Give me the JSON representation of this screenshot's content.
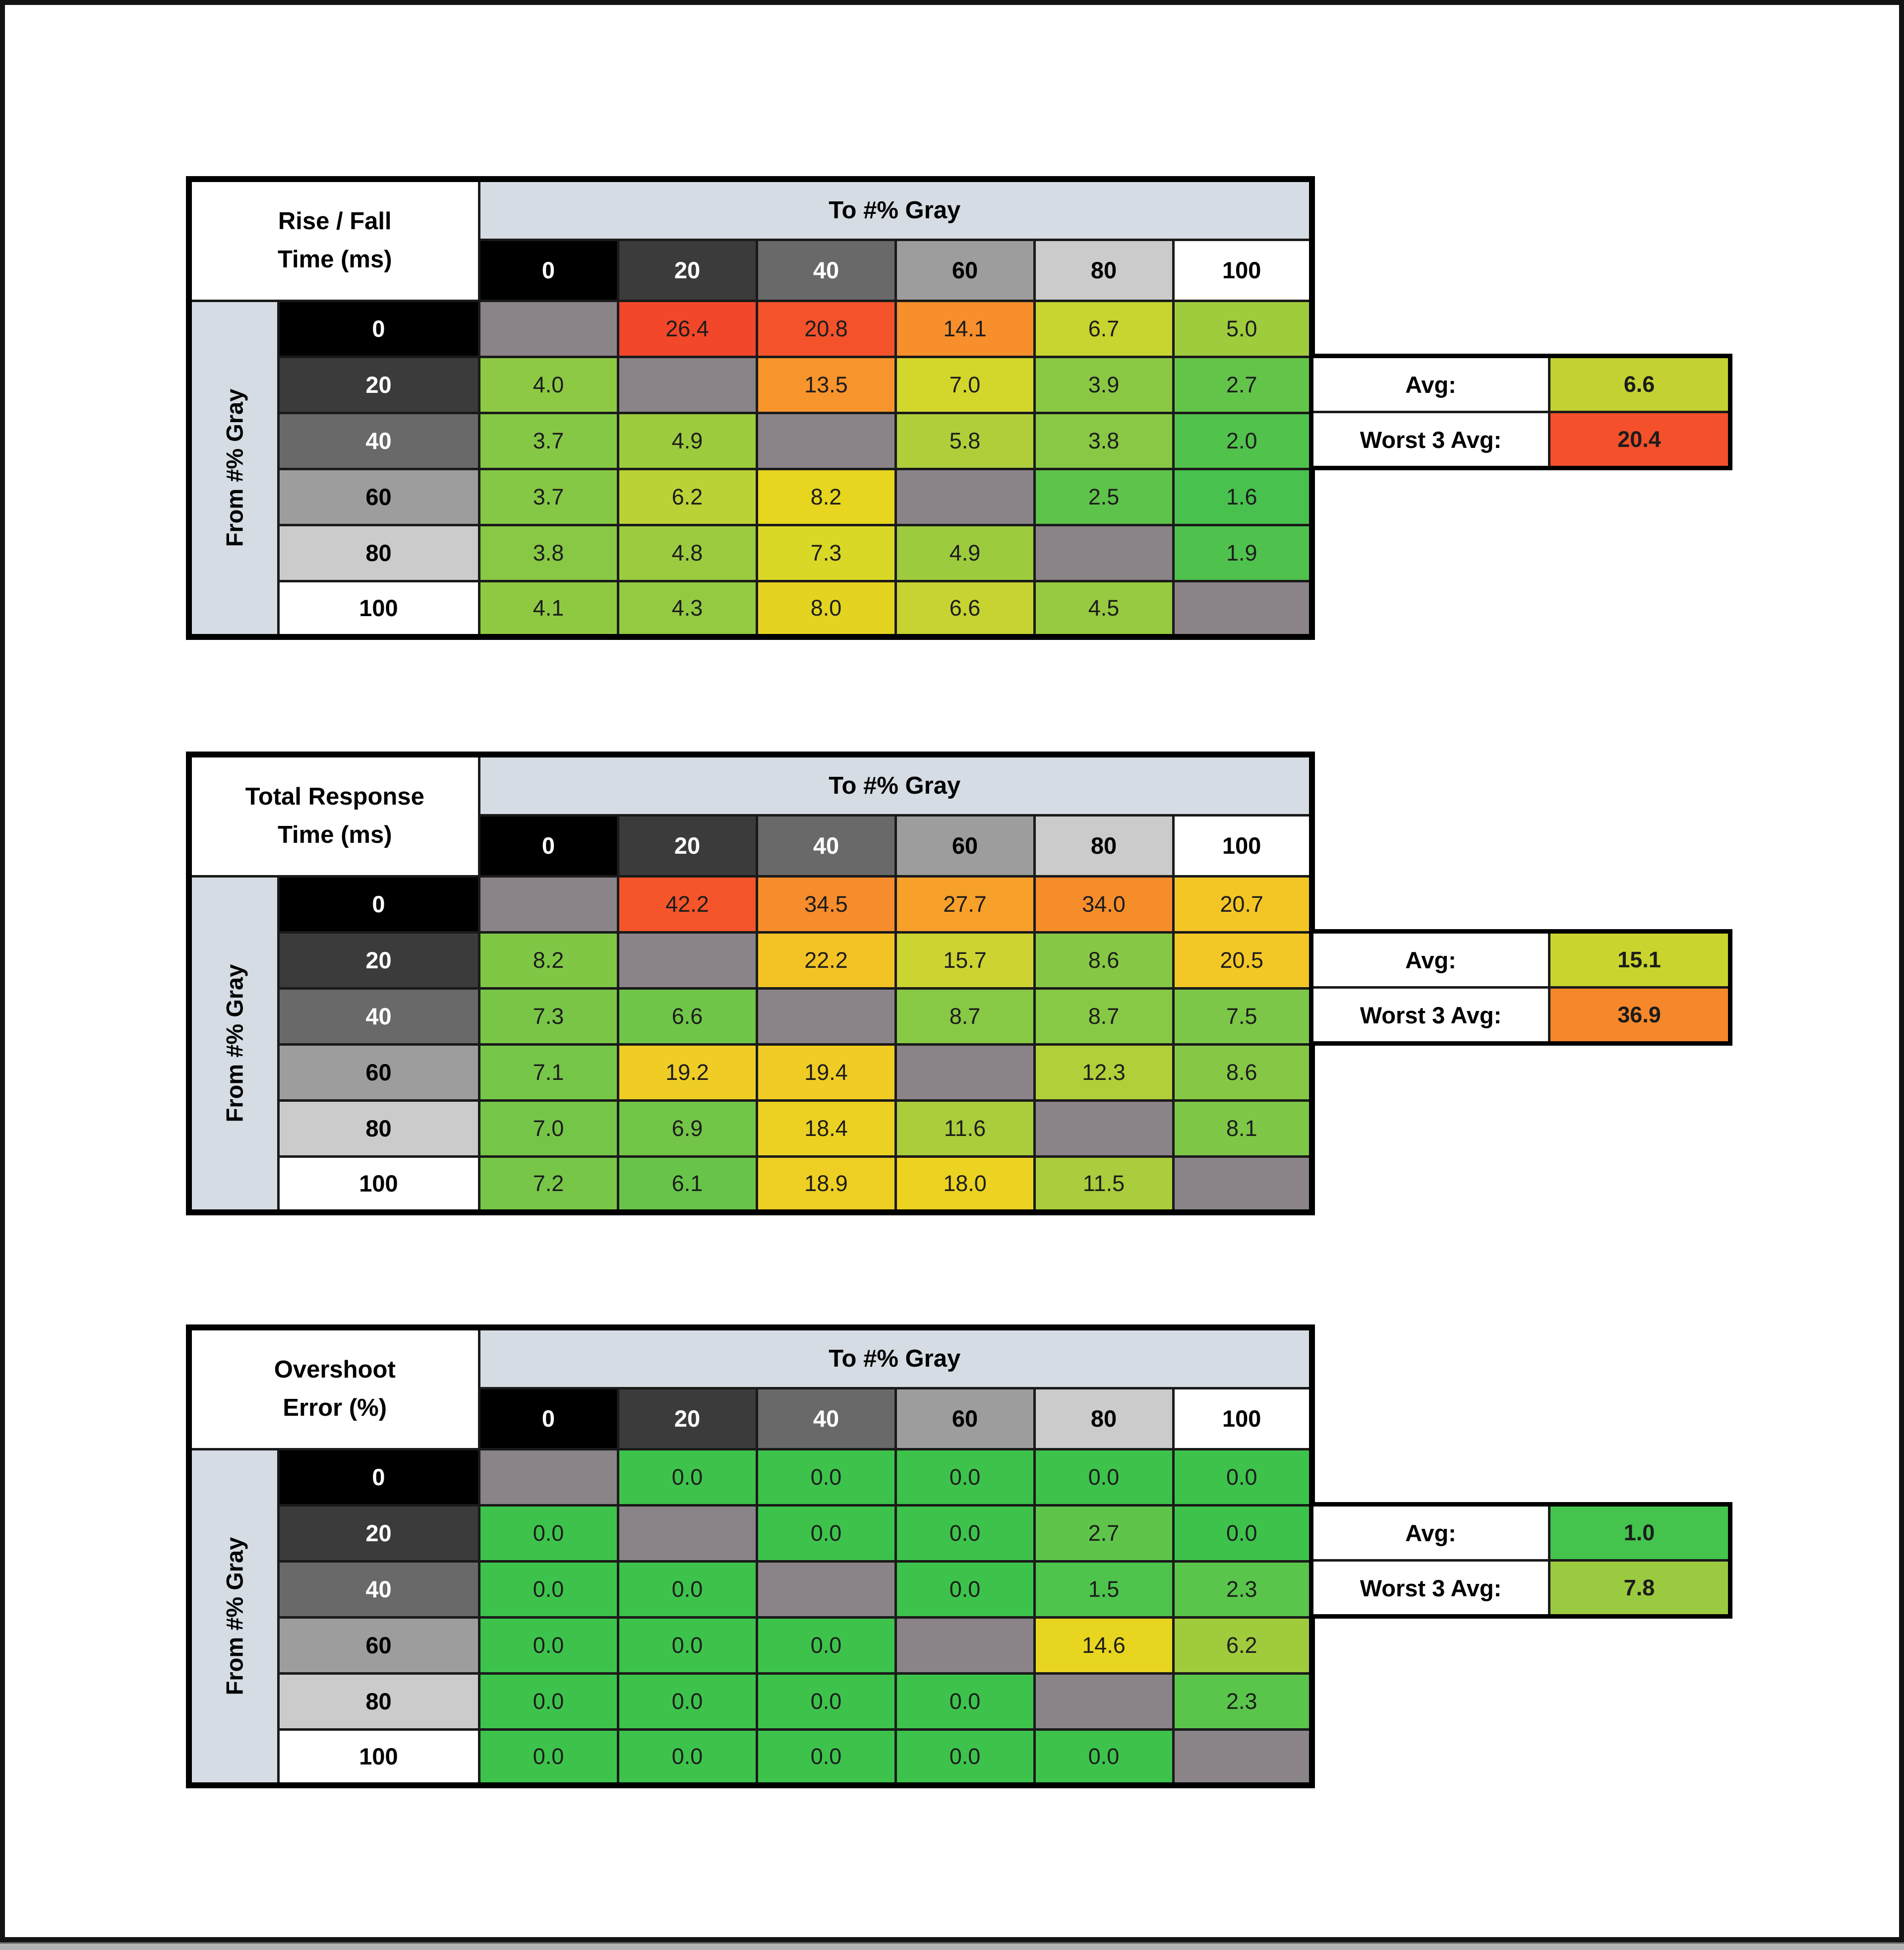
{
  "shared": {
    "to_header": "To #% Gray",
    "from_header": "From #% Gray",
    "cols": [
      "0",
      "20",
      "40",
      "60",
      "80",
      "100"
    ],
    "rows": [
      "0",
      "20",
      "40",
      "60",
      "80",
      "100"
    ],
    "header_shades": [
      {
        "bg": "#000000",
        "fg": "#ffffff"
      },
      {
        "bg": "#3b3b3b",
        "fg": "#ffffff"
      },
      {
        "bg": "#696969",
        "fg": "#ffffff"
      },
      {
        "bg": "#9d9d9d",
        "fg": "#000000"
      },
      {
        "bg": "#cbcbcb",
        "fg": "#000000"
      },
      {
        "bg": "#ffffff",
        "fg": "#000000"
      }
    ],
    "diagonal_color": "#8a8489",
    "banner_bg": "#d6dce3",
    "avg_label": "Avg:",
    "worst_label": "Worst 3 Avg:"
  },
  "chart_data": [
    {
      "type": "heatmap",
      "title": "Rise / Fall Time (ms)",
      "xlabel": "To #% Gray",
      "ylabel": "From #% Gray",
      "x": [
        0,
        20,
        40,
        60,
        80,
        100
      ],
      "y": [
        0,
        20,
        40,
        60,
        80,
        100
      ],
      "values": [
        [
          null,
          26.4,
          20.8,
          14.1,
          6.7,
          5.0
        ],
        [
          4.0,
          null,
          13.5,
          7.0,
          3.9,
          2.7
        ],
        [
          3.7,
          4.9,
          null,
          5.8,
          3.8,
          2.0
        ],
        [
          3.7,
          6.2,
          8.2,
          null,
          2.5,
          1.6
        ],
        [
          3.8,
          4.8,
          7.3,
          4.9,
          null,
          1.9
        ],
        [
          4.1,
          4.3,
          8.0,
          6.6,
          4.5,
          null
        ]
      ],
      "avg": 6.6,
      "worst_3_avg": 20.4
    },
    {
      "type": "heatmap",
      "title": "Total Response Time (ms)",
      "xlabel": "To #% Gray",
      "ylabel": "From #% Gray",
      "x": [
        0,
        20,
        40,
        60,
        80,
        100
      ],
      "y": [
        0,
        20,
        40,
        60,
        80,
        100
      ],
      "values": [
        [
          null,
          42.2,
          34.5,
          27.7,
          34.0,
          20.7
        ],
        [
          8.2,
          null,
          22.2,
          15.7,
          8.6,
          20.5
        ],
        [
          7.3,
          6.6,
          null,
          8.7,
          8.7,
          7.5
        ],
        [
          7.1,
          19.2,
          19.4,
          null,
          12.3,
          8.6
        ],
        [
          7.0,
          6.9,
          18.4,
          11.6,
          null,
          8.1
        ],
        [
          7.2,
          6.1,
          18.9,
          18.0,
          11.5,
          null
        ]
      ],
      "avg": 15.1,
      "worst_3_avg": 36.9
    },
    {
      "type": "heatmap",
      "title": "Overshoot Error (%)",
      "xlabel": "To #% Gray",
      "ylabel": "From #% Gray",
      "x": [
        0,
        20,
        40,
        60,
        80,
        100
      ],
      "y": [
        0,
        20,
        40,
        60,
        80,
        100
      ],
      "values": [
        [
          null,
          0.0,
          0.0,
          0.0,
          0.0,
          0.0
        ],
        [
          0.0,
          null,
          0.0,
          0.0,
          2.7,
          0.0
        ],
        [
          0.0,
          0.0,
          null,
          0.0,
          1.5,
          2.3
        ],
        [
          0.0,
          0.0,
          0.0,
          null,
          14.6,
          6.2
        ],
        [
          0.0,
          0.0,
          0.0,
          0.0,
          null,
          2.3
        ],
        [
          0.0,
          0.0,
          0.0,
          0.0,
          0.0,
          null
        ]
      ],
      "avg": 1.0,
      "worst_3_avg": 7.8
    }
  ],
  "tables": [
    {
      "name": "rise-fall-table",
      "title_lines": [
        "Rise / Fall",
        "Time (ms)"
      ],
      "cells": [
        [
          null,
          {
            "v": "26.4",
            "c": "#F2472A"
          },
          {
            "v": "20.8",
            "c": "#F3522B"
          },
          {
            "v": "14.1",
            "c": "#F68F2C"
          },
          {
            "v": "6.7",
            "c": "#C8D42F"
          },
          {
            "v": "5.0",
            "c": "#9FCC3D"
          }
        ],
        [
          {
            "v": "4.0",
            "c": "#8DC943"
          },
          null,
          {
            "v": "13.5",
            "c": "#F7942C"
          },
          {
            "v": "7.0",
            "c": "#D4D72B"
          },
          {
            "v": "3.9",
            "c": "#8AC844"
          },
          {
            "v": "2.7",
            "c": "#63C44A"
          }
        ],
        [
          {
            "v": "3.7",
            "c": "#85C845"
          },
          {
            "v": "4.9",
            "c": "#9DCB3E"
          },
          null,
          {
            "v": "5.8",
            "c": "#AFCE3A"
          },
          {
            "v": "3.8",
            "c": "#88C844"
          },
          {
            "v": "2.0",
            "c": "#51C24C"
          }
        ],
        [
          {
            "v": "3.7",
            "c": "#85C845"
          },
          {
            "v": "6.2",
            "c": "#BCD135"
          },
          {
            "v": "8.2",
            "c": "#E7D51F"
          },
          null,
          {
            "v": "2.5",
            "c": "#5EC34B"
          },
          {
            "v": "1.6",
            "c": "#48C14E"
          }
        ],
        [
          {
            "v": "3.8",
            "c": "#88C844"
          },
          {
            "v": "4.8",
            "c": "#9BCB3F"
          },
          {
            "v": "7.3",
            "c": "#DAD827"
          },
          {
            "v": "4.9",
            "c": "#9DCB3E"
          },
          null,
          {
            "v": "1.9",
            "c": "#4FC24D"
          }
        ],
        [
          {
            "v": "4.1",
            "c": "#8FC942"
          },
          {
            "v": "4.3",
            "c": "#93CA41"
          },
          {
            "v": "8.0",
            "c": "#E4D421"
          },
          {
            "v": "6.6",
            "c": "#C6D330"
          },
          {
            "v": "4.5",
            "c": "#97CA40"
          },
          null
        ]
      ],
      "avg": {
        "v": "6.6",
        "c": "#C3D232"
      },
      "worst": {
        "v": "20.4",
        "c": "#F3502B"
      }
    },
    {
      "name": "total-response-table",
      "title_lines": [
        "Total Response",
        "Time (ms)"
      ],
      "cells": [
        [
          null,
          {
            "v": "42.2",
            "c": "#F4552A"
          },
          {
            "v": "34.5",
            "c": "#F68C2B"
          },
          {
            "v": "27.7",
            "c": "#F7A02A"
          },
          {
            "v": "34.0",
            "c": "#F68D2B"
          },
          {
            "v": "20.7",
            "c": "#F3C626"
          }
        ],
        [
          {
            "v": "8.2",
            "c": "#80C746"
          },
          null,
          {
            "v": "22.2",
            "c": "#F3C326"
          },
          {
            "v": "15.7",
            "c": "#CCD431"
          },
          {
            "v": "8.6",
            "c": "#86C845"
          },
          {
            "v": "20.5",
            "c": "#F3C726"
          }
        ],
        [
          {
            "v": "7.3",
            "c": "#79C647"
          },
          {
            "v": "6.6",
            "c": "#6FC548"
          },
          null,
          {
            "v": "8.7",
            "c": "#87C845"
          },
          {
            "v": "8.7",
            "c": "#87C845"
          },
          {
            "v": "7.5",
            "c": "#7CC747"
          }
        ],
        [
          {
            "v": "7.1",
            "c": "#76C647"
          },
          {
            "v": "19.2",
            "c": "#EFCD24"
          },
          {
            "v": "19.4",
            "c": "#F0CC24"
          },
          null,
          {
            "v": "12.3",
            "c": "#B1CF39"
          },
          {
            "v": "8.6",
            "c": "#86C845"
          }
        ],
        [
          {
            "v": "7.0",
            "c": "#75C647"
          },
          {
            "v": "6.9",
            "c": "#73C548"
          },
          {
            "v": "18.4",
            "c": "#EDD122"
          },
          {
            "v": "11.6",
            "c": "#AACD3B"
          },
          null,
          {
            "v": "8.1",
            "c": "#7FC746"
          }
        ],
        [
          {
            "v": "7.2",
            "c": "#77C647"
          },
          {
            "v": "6.1",
            "c": "#68C449"
          },
          {
            "v": "18.9",
            "c": "#EECF23"
          },
          {
            "v": "18.0",
            "c": "#ECD221"
          },
          {
            "v": "11.5",
            "c": "#A9CD3C"
          },
          null
        ]
      ],
      "avg": {
        "v": "15.1",
        "c": "#C9D42E"
      },
      "worst": {
        "v": "36.9",
        "c": "#F6882B"
      }
    },
    {
      "name": "overshoot-table",
      "title_lines": [
        "Overshoot",
        "Error (%)"
      ],
      "cells": [
        [
          null,
          {
            "v": "0.0",
            "c": "#3DC34C"
          },
          {
            "v": "0.0",
            "c": "#3DC34C"
          },
          {
            "v": "0.0",
            "c": "#3DC34C"
          },
          {
            "v": "0.0",
            "c": "#3DC34C"
          },
          {
            "v": "0.0",
            "c": "#3DC34C"
          }
        ],
        [
          {
            "v": "0.0",
            "c": "#3DC34C"
          },
          null,
          {
            "v": "0.0",
            "c": "#3DC34C"
          },
          {
            "v": "0.0",
            "c": "#3DC34C"
          },
          {
            "v": "2.7",
            "c": "#5FC54A"
          },
          {
            "v": "0.0",
            "c": "#3DC34C"
          }
        ],
        [
          {
            "v": "0.0",
            "c": "#3DC34C"
          },
          {
            "v": "0.0",
            "c": "#3DC34C"
          },
          null,
          {
            "v": "0.0",
            "c": "#3DC34C"
          },
          {
            "v": "1.5",
            "c": "#4EC44C"
          },
          {
            "v": "2.3",
            "c": "#59C54B"
          }
        ],
        [
          {
            "v": "0.0",
            "c": "#3DC34C"
          },
          {
            "v": "0.0",
            "c": "#3DC34C"
          },
          {
            "v": "0.0",
            "c": "#3DC34C"
          },
          null,
          {
            "v": "14.6",
            "c": "#E8D51F"
          },
          {
            "v": "6.2",
            "c": "#9FCB3D"
          }
        ],
        [
          {
            "v": "0.0",
            "c": "#3DC34C"
          },
          {
            "v": "0.0",
            "c": "#3DC34C"
          },
          {
            "v": "0.0",
            "c": "#3DC34C"
          },
          {
            "v": "0.0",
            "c": "#3DC34C"
          },
          null,
          {
            "v": "2.3",
            "c": "#59C54B"
          }
        ],
        [
          {
            "v": "0.0",
            "c": "#3DC34C"
          },
          {
            "v": "0.0",
            "c": "#3DC34C"
          },
          {
            "v": "0.0",
            "c": "#3DC34C"
          },
          {
            "v": "0.0",
            "c": "#3DC34C"
          },
          {
            "v": "0.0",
            "c": "#3DC34C"
          },
          null
        ]
      ],
      "avg": {
        "v": "1.0",
        "c": "#44C44C"
      },
      "worst": {
        "v": "7.8",
        "c": "#9ACA3F"
      }
    }
  ]
}
